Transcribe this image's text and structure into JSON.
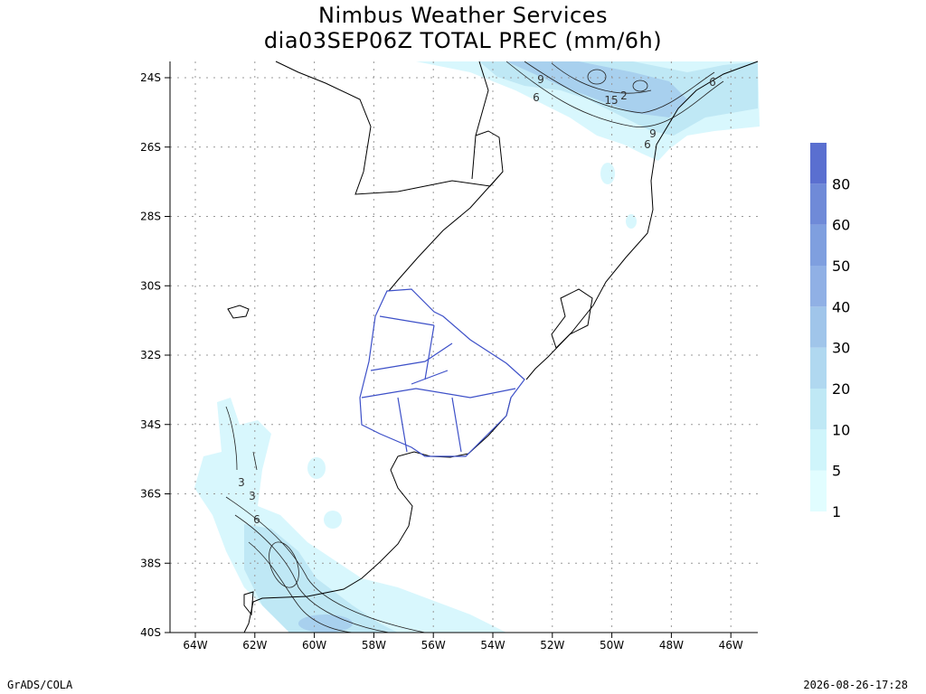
{
  "header": {
    "title": "Nimbus Weather Services",
    "subtitle": "dia03SEP06Z TOTAL PREC (mm/6h)"
  },
  "map": {
    "lat_labels": [
      "24S",
      "26S",
      "28S",
      "30S",
      "32S",
      "34S",
      "36S",
      "38S",
      "40S"
    ],
    "lon_labels": [
      "64W",
      "62W",
      "60W",
      "58W",
      "56W",
      "54W",
      "52W",
      "50W",
      "48W",
      "46W"
    ],
    "contour_labels": [
      "9",
      "6",
      "15",
      "2",
      "9",
      "6",
      "6",
      "3",
      "3",
      "6"
    ]
  },
  "colorbar": {
    "labels": [
      "1",
      "5",
      "10",
      "20",
      "30",
      "40",
      "50",
      "60",
      "80"
    ]
  },
  "footer": {
    "left": "GrADS/COLA",
    "right": "2026-08-26-17:28"
  }
}
